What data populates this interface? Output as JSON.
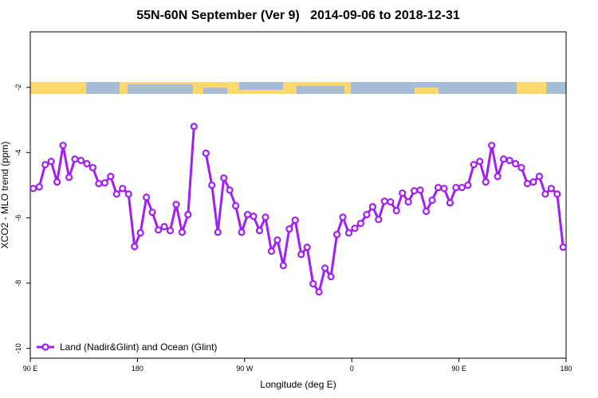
{
  "chart_data": {
    "type": "line",
    "title": "55N-60N September (Ver 9)   2014-09-06 to 2018-12-31",
    "x_label": "Longitude (deg E)",
    "y_label": "XCO2 - MLO trend (ppm)",
    "x": [
      92.5,
      97.5,
      102.5,
      107.5,
      112.5,
      117.5,
      122.5,
      127.5,
      132.5,
      137.5,
      142.5,
      147.5,
      152.5,
      157.5,
      162.5,
      167.5,
      172.5,
      177.5,
      182.5,
      187.5,
      192.5,
      197.5,
      202.5,
      207.5,
      212.5,
      217.5,
      222.5,
      227.5,
      232.5,
      237.5,
      242.5,
      247.5,
      252.5,
      257.5,
      262.5,
      267.5,
      272.5,
      277.5,
      282.5,
      287.5,
      292.5,
      297.5,
      302.5,
      307.5,
      312.5,
      317.5,
      322.5,
      327.5,
      332.5,
      337.5,
      342.5,
      347.5,
      352.5,
      357.5,
      362.5,
      367.5,
      372.5,
      377.5,
      382.5,
      387.5,
      392.5,
      397.5,
      402.5,
      407.5,
      412.5,
      417.5,
      422.5,
      427.5,
      432.5,
      437.5,
      442.5,
      447.5,
      452.5,
      457.5,
      462.5,
      467.5,
      472.5,
      477.5,
      482.5,
      487.5,
      492.5,
      497.5,
      502.5,
      507.5,
      512.5,
      517.5,
      522.5,
      527.5,
      532.5,
      537.5
    ],
    "series": [
      {
        "name": "Land (Nadir&Glint) and Ocean (Glint)",
        "color": "#a020f0",
        "values": [
          -5.1,
          -5.05,
          -4.37,
          -4.27,
          -4.9,
          -3.78,
          -4.76,
          -4.2,
          -4.24,
          -4.34,
          -4.46,
          -4.95,
          -4.93,
          -4.73,
          -5.27,
          -5.1,
          -5.27,
          -6.88,
          -6.46,
          -5.37,
          -5.83,
          -6.37,
          -6.27,
          -6.39,
          -5.59,
          -6.44,
          -5.9,
          -3.2,
          null,
          -4.02,
          -5.0,
          -6.44,
          -4.78,
          -5.15,
          -5.63,
          -6.44,
          -5.9,
          -5.95,
          -6.39,
          -5.98,
          -7.02,
          -6.68,
          -7.46,
          -6.34,
          -6.07,
          -7.12,
          -6.9,
          -8.02,
          -8.27,
          -7.54,
          -7.8,
          -6.51,
          -5.98,
          -6.46,
          -6.32,
          -6.17,
          -5.9,
          -5.66,
          -6.05,
          -5.49,
          -5.51,
          -5.78,
          -5.24,
          -5.51,
          -5.17,
          -5.15,
          -5.8,
          -5.46,
          -5.07,
          -5.1,
          -5.54,
          -5.07,
          -5.07,
          -5.0,
          -4.37,
          -4.27,
          -4.9,
          -3.78,
          -4.73,
          -4.2,
          -4.24,
          -4.34,
          -4.46,
          -4.95,
          -4.9,
          -4.73,
          -5.27,
          -5.1,
          -5.27,
          -6.9
        ]
      }
    ],
    "xlim": [
      90,
      540
    ],
    "xticks": [
      {
        "value": 90,
        "label": "90 E"
      },
      180,
      {
        "value": 270,
        "label": "90 W"
      },
      {
        "value": 360,
        "label": "0"
      },
      {
        "value": 450,
        "label": "90 E"
      },
      {
        "value": 540,
        "label": "180"
      }
    ],
    "ylim": [
      -10.3,
      -0.3
    ],
    "yticks": [
      -10,
      -8,
      -6,
      -4,
      -2
    ],
    "legend": "lower left"
  }
}
